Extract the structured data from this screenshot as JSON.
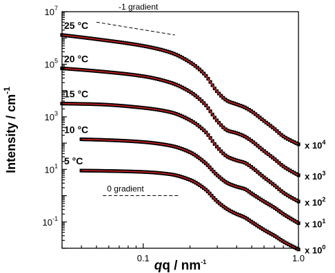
{
  "chart_data": {
    "type": "scatter",
    "xscale": "log",
    "yscale": "log",
    "xlim": [
      0.03,
      1.0
    ],
    "ylim": [
      0.01,
      10000000
    ],
    "xlabel": "q / nm",
    "xlabel_sup": "-1",
    "ylabel": "Intensity / cm",
    "ylabel_sup": "-1",
    "x_ticks": [
      {
        "value": 0.1,
        "label": "0.1"
      },
      {
        "value": 1.0,
        "label": "1.0"
      }
    ],
    "y_ticks": [
      {
        "value": 10,
        "exp": "1"
      },
      {
        "value": 1000,
        "exp": "3"
      },
      {
        "value": 100000,
        "exp": "5"
      },
      {
        "value": 10000000,
        "exp": "7"
      },
      {
        "value": 0.1,
        "exp": "-1"
      }
    ],
    "y_tick_base": "10",
    "marker_color": "#000000",
    "fit_color": "#cc2222",
    "series": [
      {
        "label": "5 °C",
        "multiplier_base": "x 10",
        "multiplier_exp": "0",
        "x": [
          0.04,
          0.06,
          0.1,
          0.15,
          0.2,
          0.25,
          0.3,
          0.35,
          0.4,
          0.45,
          0.5,
          0.6,
          0.7,
          0.8,
          1.0
        ],
        "y": [
          9,
          8.7,
          8,
          6.5,
          4,
          1.8,
          0.6,
          0.3,
          0.2,
          0.15,
          0.1,
          0.05,
          0.03,
          0.018,
          0.009
        ]
      },
      {
        "label": "10 °C",
        "multiplier_base": "x 10",
        "multiplier_exp": "1",
        "x": [
          0.04,
          0.06,
          0.1,
          0.15,
          0.2,
          0.25,
          0.3,
          0.35,
          0.4,
          0.45,
          0.5,
          0.6,
          0.7,
          0.8,
          1.0
        ],
        "y": [
          140,
          130,
          110,
          80,
          45,
          18,
          6,
          3,
          2.2,
          1.8,
          1.2,
          0.6,
          0.35,
          0.2,
          0.09
        ]
      },
      {
        "label": "15 °C",
        "multiplier_base": "x 10",
        "multiplier_exp": "2",
        "x": [
          0.03,
          0.05,
          0.1,
          0.15,
          0.2,
          0.25,
          0.3,
          0.35,
          0.4,
          0.45,
          0.5,
          0.6,
          0.7,
          0.8,
          1.0
        ],
        "y": [
          3200,
          3000,
          2200,
          1500,
          750,
          280,
          70,
          30,
          22,
          18,
          12,
          5,
          2.5,
          1.3,
          0.6
        ]
      },
      {
        "label": "20 °C",
        "multiplier_base": "x 10",
        "multiplier_exp": "3",
        "x": [
          0.03,
          0.05,
          0.1,
          0.15,
          0.2,
          0.25,
          0.3,
          0.35,
          0.4,
          0.45,
          0.5,
          0.6,
          0.7,
          0.8,
          1.0
        ],
        "y": [
          70000,
          55000,
          35000,
          20000,
          9000,
          3000,
          700,
          300,
          240,
          180,
          120,
          50,
          25,
          13,
          6
        ]
      },
      {
        "label": "25 °C",
        "multiplier_base": "x 10",
        "multiplier_exp": "4",
        "x": [
          0.03,
          0.05,
          0.1,
          0.15,
          0.2,
          0.25,
          0.3,
          0.35,
          0.4,
          0.45,
          0.5,
          0.6,
          0.7,
          0.8,
          1.0
        ],
        "y": [
          1300000,
          900000,
          500000,
          280000,
          120000,
          40000,
          9000,
          4000,
          3000,
          2300,
          1600,
          700,
          350,
          180,
          90
        ]
      }
    ],
    "annotations": [
      {
        "text": "-1 gradient",
        "line": {
          "x": [
            0.05,
            0.16
          ],
          "y": [
            4000000,
            1300000
          ]
        }
      },
      {
        "text": "0 gradient",
        "line": {
          "x": [
            0.055,
            0.17
          ],
          "y": [
            1.0,
            1.0
          ]
        }
      }
    ]
  }
}
